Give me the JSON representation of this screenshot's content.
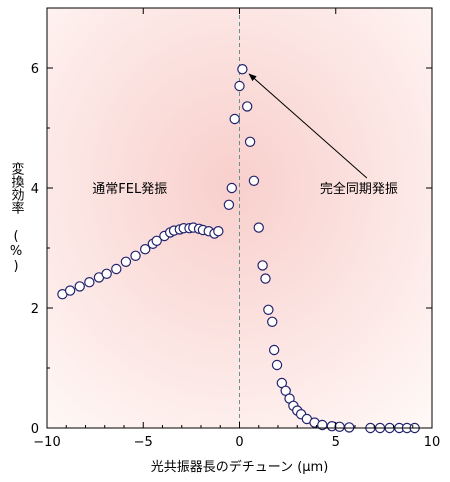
{
  "chart_data": {
    "type": "scatter",
    "xlabel": "光共振器長のデチューン (μm)",
    "ylabel": "変換効率 (%)",
    "xlim": [
      -10,
      10
    ],
    "ylim": [
      0,
      7
    ],
    "x_ticks": [
      -10,
      -5,
      0,
      5,
      10
    ],
    "y_ticks": [
      0,
      2,
      4,
      6
    ],
    "grid": false,
    "reference_line_x": 0,
    "annotations": [
      {
        "text": "通常FEL発振",
        "x": -5.7,
        "y": 4.0
      },
      {
        "text": "完全同期発振",
        "x": 6.2,
        "y": 4.0,
        "arrow_to": [
          0.5,
          5.9
        ]
      }
    ],
    "colors": {
      "marker_edge": "#22226e",
      "marker_fill": "#ffffff",
      "bg_gradient_edge": "#fff8f6",
      "bg_gradient_center": "#f8cfcc",
      "dashed_line": "#6a8f8a"
    },
    "series": [
      {
        "points": [
          [
            -9.2,
            2.23
          ],
          [
            -8.8,
            2.29
          ],
          [
            -8.3,
            2.36
          ],
          [
            -7.8,
            2.43
          ],
          [
            -7.3,
            2.51
          ],
          [
            -6.9,
            2.57
          ],
          [
            -6.4,
            2.65
          ],
          [
            -5.9,
            2.77
          ],
          [
            -5.4,
            2.87
          ],
          [
            -4.9,
            2.98
          ],
          [
            -4.5,
            3.07
          ],
          [
            -4.3,
            3.12
          ],
          [
            -3.9,
            3.2
          ],
          [
            -3.6,
            3.26
          ],
          [
            -3.4,
            3.29
          ],
          [
            -3.1,
            3.31
          ],
          [
            -2.9,
            3.33
          ],
          [
            -2.6,
            3.33
          ],
          [
            -2.4,
            3.34
          ],
          [
            -2.1,
            3.32
          ],
          [
            -1.9,
            3.3
          ],
          [
            -1.6,
            3.28
          ],
          [
            -1.3,
            3.24
          ],
          [
            -1.1,
            3.28
          ],
          [
            -0.55,
            3.72
          ],
          [
            -0.4,
            4.0
          ],
          [
            -0.25,
            5.15
          ],
          [
            0.0,
            5.7
          ],
          [
            0.15,
            5.98
          ],
          [
            0.4,
            5.36
          ],
          [
            0.55,
            4.77
          ],
          [
            0.75,
            4.12
          ],
          [
            1.0,
            3.34
          ],
          [
            1.2,
            2.71
          ],
          [
            1.35,
            2.49
          ],
          [
            1.5,
            1.97
          ],
          [
            1.7,
            1.77
          ],
          [
            1.8,
            1.3
          ],
          [
            1.95,
            1.05
          ],
          [
            2.2,
            0.75
          ],
          [
            2.4,
            0.62
          ],
          [
            2.6,
            0.49
          ],
          [
            2.8,
            0.37
          ],
          [
            3.0,
            0.29
          ],
          [
            3.2,
            0.23
          ],
          [
            3.5,
            0.15
          ],
          [
            3.9,
            0.09
          ],
          [
            4.3,
            0.05
          ],
          [
            4.8,
            0.03
          ],
          [
            5.2,
            0.02
          ],
          [
            5.7,
            0.01
          ],
          [
            6.8,
            0.0
          ],
          [
            7.3,
            0.0
          ],
          [
            7.8,
            0.0
          ],
          [
            8.3,
            0.0
          ],
          [
            8.7,
            0.0
          ],
          [
            9.1,
            0.0
          ]
        ]
      }
    ]
  }
}
